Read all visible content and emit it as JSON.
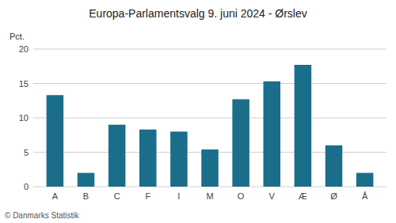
{
  "chart_data": {
    "type": "bar",
    "title": "Europa-Parlamentsvalg 9. juni 2024 - Ørslev",
    "ylabel": "Pct.",
    "footer": "© Danmarks Statistik",
    "categories": [
      "A",
      "B",
      "C",
      "F",
      "I",
      "M",
      "O",
      "V",
      "Æ",
      "Ø",
      "Å"
    ],
    "values": [
      13.3,
      2.0,
      9.0,
      8.3,
      8.0,
      5.4,
      12.7,
      15.3,
      17.7,
      6.0,
      2.0
    ],
    "color": "#1a6e8a",
    "ylim": [
      0,
      20
    ],
    "yticks": [
      0,
      5,
      10,
      15,
      20
    ],
    "grid": true
  }
}
